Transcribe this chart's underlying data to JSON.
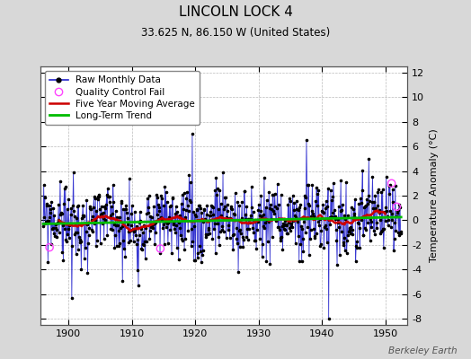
{
  "title": "LINCOLN LOCK 4",
  "subtitle": "33.625 N, 86.150 W (United States)",
  "ylabel": "Temperature Anomaly (°C)",
  "credit": "Berkeley Earth",
  "xlim": [
    1895.5,
    1953.5
  ],
  "ylim": [
    -8.5,
    12.5
  ],
  "yticks": [
    -8,
    -6,
    -4,
    -2,
    0,
    2,
    4,
    6,
    8,
    10,
    12
  ],
  "xticks": [
    1900,
    1910,
    1920,
    1930,
    1940,
    1950
  ],
  "background_color": "#d8d8d8",
  "plot_bg_color": "#ffffff",
  "raw_color": "#2222cc",
  "ma_color": "#cc0000",
  "trend_color": "#00bb00",
  "qc_color": "#ff44ff",
  "title_fontsize": 11,
  "subtitle_fontsize": 8.5,
  "tick_fontsize": 8,
  "ylabel_fontsize": 8,
  "legend_fontsize": 7.5,
  "credit_fontsize": 7.5
}
